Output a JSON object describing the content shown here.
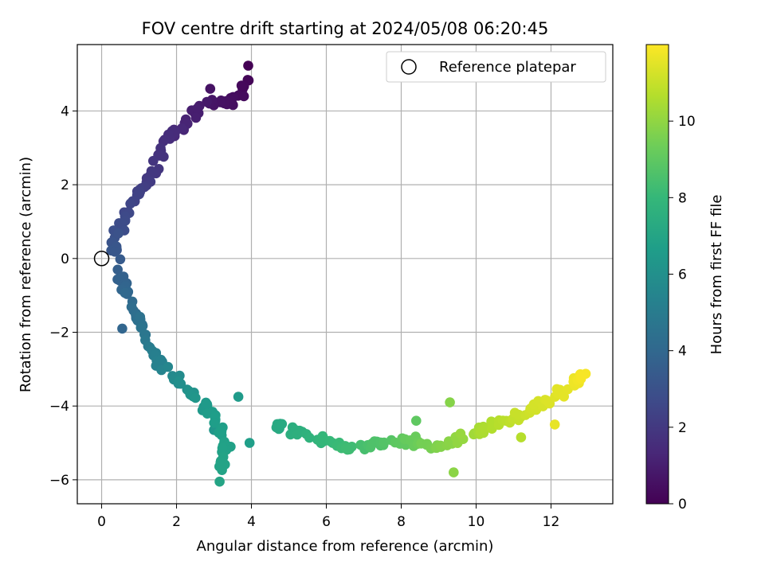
{
  "chart_data": {
    "type": "scatter",
    "title": "FOV centre drift starting at 2024/05/08 06:20:45",
    "xlabel": "Angular distance from reference (arcmin)",
    "ylabel": "Rotation from reference (arcmin)",
    "xlim": [
      -0.65,
      13.65
    ],
    "ylim": [
      -6.65,
      5.8
    ],
    "xticks": [
      0,
      2,
      4,
      6,
      8,
      10,
      12
    ],
    "yticks": [
      -6,
      -4,
      -2,
      0,
      2,
      4
    ],
    "grid": true,
    "legend": {
      "position": "top-right",
      "entries": [
        {
          "label": "Reference platepar",
          "marker": "open-circle"
        }
      ]
    },
    "reference": {
      "x": 0,
      "y": 0
    },
    "colorbar": {
      "label": "Hours from first FF file",
      "range": [
        0,
        12
      ],
      "ticks": [
        0,
        2,
        4,
        6,
        8,
        10
      ],
      "colormap": "viridis"
    },
    "path": [
      {
        "x": 4.0,
        "y": 5.15,
        "t": 0.0
      },
      {
        "x": 3.75,
        "y": 4.6,
        "t": 0.25
      },
      {
        "x": 3.3,
        "y": 4.2,
        "t": 0.5
      },
      {
        "x": 2.8,
        "y": 4.3,
        "t": 0.75
      },
      {
        "x": 2.5,
        "y": 3.9,
        "t": 1.0
      },
      {
        "x": 2.2,
        "y": 3.6,
        "t": 1.25
      },
      {
        "x": 1.85,
        "y": 3.4,
        "t": 1.5
      },
      {
        "x": 1.55,
        "y": 2.8,
        "t": 1.75
      },
      {
        "x": 1.3,
        "y": 2.2,
        "t": 2.0
      },
      {
        "x": 0.95,
        "y": 1.7,
        "t": 2.3
      },
      {
        "x": 0.7,
        "y": 1.2,
        "t": 2.6
      },
      {
        "x": 0.45,
        "y": 0.7,
        "t": 2.9
      },
      {
        "x": 0.35,
        "y": 0.3,
        "t": 3.2
      },
      {
        "x": 0.45,
        "y": -0.2,
        "t": 3.5
      },
      {
        "x": 0.55,
        "y": -0.7,
        "t": 3.8
      },
      {
        "x": 0.75,
        "y": -1.1,
        "t": 4.1
      },
      {
        "x": 0.95,
        "y": -1.6,
        "t": 4.4
      },
      {
        "x": 1.2,
        "y": -2.2,
        "t": 4.8
      },
      {
        "x": 1.5,
        "y": -2.7,
        "t": 5.2
      },
      {
        "x": 1.85,
        "y": -3.1,
        "t": 5.6
      },
      {
        "x": 2.2,
        "y": -3.55,
        "t": 6.0
      },
      {
        "x": 2.6,
        "y": -3.9,
        "t": 6.35
      },
      {
        "x": 3.0,
        "y": -4.2,
        "t": 6.6
      },
      {
        "x": 3.3,
        "y": -4.9,
        "t": 6.8
      },
      {
        "x": 3.2,
        "y": -5.7,
        "t": 6.95
      },
      {
        "x": 4.7,
        "y": -4.5,
        "t": 7.25
      },
      {
        "x": 5.5,
        "y": -4.8,
        "t": 7.7
      },
      {
        "x": 6.5,
        "y": -5.1,
        "t": 8.2
      },
      {
        "x": 7.5,
        "y": -5.0,
        "t": 8.7
      },
      {
        "x": 8.3,
        "y": -4.95,
        "t": 9.2
      },
      {
        "x": 9.0,
        "y": -5.15,
        "t": 9.7
      },
      {
        "x": 9.6,
        "y": -4.9,
        "t": 10.1
      },
      {
        "x": 10.2,
        "y": -4.65,
        "t": 10.5
      },
      {
        "x": 10.9,
        "y": -4.4,
        "t": 10.9
      },
      {
        "x": 11.5,
        "y": -4.1,
        "t": 11.2
      },
      {
        "x": 12.2,
        "y": -3.7,
        "t": 11.5
      },
      {
        "x": 12.8,
        "y": -3.3,
        "t": 11.8
      },
      {
        "x": 12.85,
        "y": -3.1,
        "t": 11.9
      }
    ],
    "outliers": [
      {
        "x": 0.55,
        "y": -1.9,
        "t": 3.9
      },
      {
        "x": 3.0,
        "y": -4.65,
        "t": 6.3
      },
      {
        "x": 3.65,
        "y": -3.75,
        "t": 6.5
      },
      {
        "x": 3.95,
        "y": -5.0,
        "t": 6.7
      },
      {
        "x": 3.15,
        "y": -6.05,
        "t": 7.0
      },
      {
        "x": 3.8,
        "y": 4.4,
        "t": 0.35
      },
      {
        "x": 2.9,
        "y": 4.6,
        "t": 0.6
      },
      {
        "x": 9.3,
        "y": -3.9,
        "t": 9.8
      },
      {
        "x": 8.4,
        "y": -4.4,
        "t": 9.0
      },
      {
        "x": 12.1,
        "y": -4.5,
        "t": 11.6
      },
      {
        "x": 11.2,
        "y": -4.85,
        "t": 10.7
      },
      {
        "x": 9.4,
        "y": -5.8,
        "t": 9.9
      }
    ]
  }
}
